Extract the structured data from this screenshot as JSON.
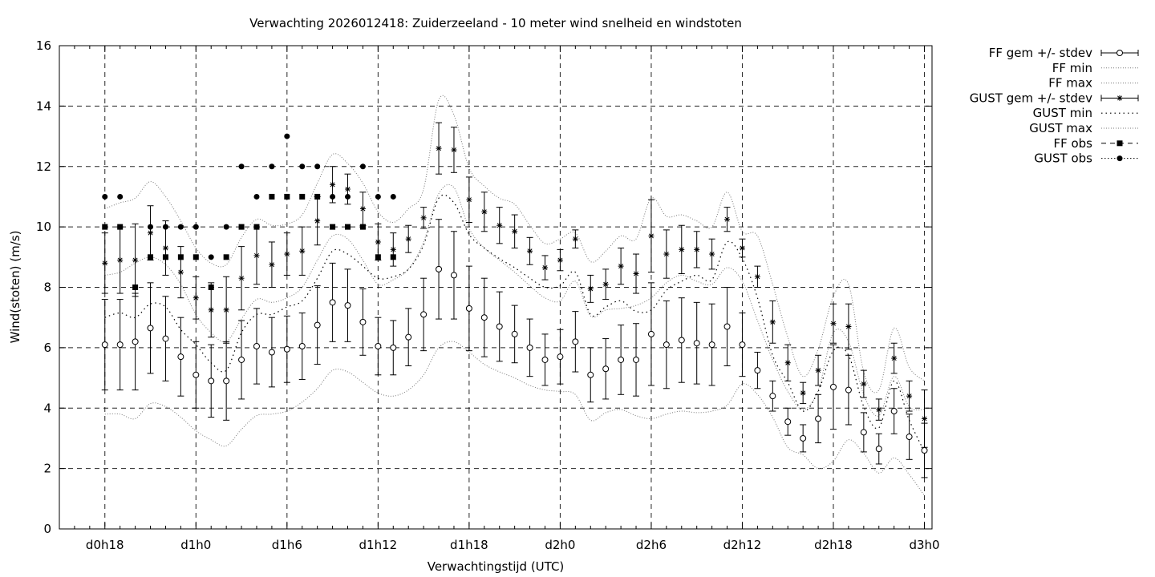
{
  "chart_data": {
    "type": "line",
    "title": "Verwachting 2026012418: Zuiderzeeland - 10 meter wind snelheid en windstoten",
    "xlabel": "Verwachtingstijd (UTC)",
    "ylabel": "Wind(stoten) (m/s)",
    "ylim": [
      0,
      16
    ],
    "yticks": [
      "0",
      "2",
      "4",
      "6",
      "8",
      "10",
      "12",
      "14",
      "16"
    ],
    "xlim_hours": [
      15,
      72.5
    ],
    "xticks": [
      {
        "h": 18,
        "label": "d0h18"
      },
      {
        "h": 24,
        "label": "d1h0"
      },
      {
        "h": 30,
        "label": "d1h6"
      },
      {
        "h": 36,
        "label": "d1h12"
      },
      {
        "h": 42,
        "label": "d1h18"
      },
      {
        "h": 48,
        "label": "d2h0"
      },
      {
        "h": 54,
        "label": "d2h6"
      },
      {
        "h": 60,
        "label": "d2h12"
      },
      {
        "h": 66,
        "label": "d2h18"
      },
      {
        "h": 72,
        "label": "d3h0"
      }
    ],
    "grid": true,
    "legend_position": "outside-right",
    "legend": [
      "FF gem +/- stdev",
      "FF min",
      "FF max",
      "GUST gem +/- stdev",
      "GUST min",
      "GUST max",
      "FF obs",
      "GUST obs"
    ],
    "ff_mean": [
      [
        18,
        6.1,
        1.5
      ],
      [
        19,
        6.1,
        1.5
      ],
      [
        20,
        6.2,
        1.6
      ],
      [
        21,
        6.65,
        1.5
      ],
      [
        22,
        6.3,
        1.4
      ],
      [
        23,
        5.7,
        1.3
      ],
      [
        24,
        5.1,
        1.1
      ],
      [
        25,
        4.9,
        1.2
      ],
      [
        26,
        4.9,
        1.3
      ],
      [
        27,
        5.6,
        1.3
      ],
      [
        28,
        6.05,
        1.25
      ],
      [
        29,
        5.85,
        1.15
      ],
      [
        30,
        5.95,
        1.1
      ],
      [
        31,
        6.05,
        1.1
      ],
      [
        32,
        6.75,
        1.3
      ],
      [
        33,
        7.5,
        1.3
      ],
      [
        34,
        7.4,
        1.2
      ],
      [
        35,
        6.85,
        1.1
      ],
      [
        36,
        6.05,
        0.95
      ],
      [
        37,
        6.0,
        0.9
      ],
      [
        38,
        6.35,
        0.95
      ],
      [
        39,
        7.1,
        1.2
      ],
      [
        40,
        8.6,
        1.65
      ],
      [
        41,
        8.4,
        1.45
      ],
      [
        42,
        7.3,
        1.4
      ],
      [
        43,
        7.0,
        1.3
      ],
      [
        44,
        6.7,
        1.15
      ],
      [
        45,
        6.45,
        0.95
      ],
      [
        46,
        6.0,
        0.95
      ],
      [
        47,
        5.6,
        0.85
      ],
      [
        48,
        5.7,
        0.9
      ],
      [
        49,
        6.2,
        1.0
      ],
      [
        50,
        5.1,
        0.9
      ],
      [
        51,
        5.3,
        1.0
      ],
      [
        52,
        5.6,
        1.15
      ],
      [
        53,
        5.6,
        1.2
      ],
      [
        54,
        6.45,
        1.7
      ],
      [
        55,
        6.1,
        1.45
      ],
      [
        56,
        6.25,
        1.4
      ],
      [
        57,
        6.15,
        1.35
      ],
      [
        58,
        6.1,
        1.35
      ],
      [
        59,
        6.7,
        1.3
      ],
      [
        60,
        6.1,
        1.05
      ],
      [
        61,
        5.25,
        0.6
      ],
      [
        62,
        4.4,
        0.5
      ],
      [
        63,
        3.55,
        0.45
      ],
      [
        64,
        3.0,
        0.45
      ],
      [
        65,
        3.65,
        0.8
      ],
      [
        66,
        4.7,
        1.4
      ],
      [
        67,
        4.6,
        1.15
      ],
      [
        68,
        3.2,
        0.65
      ],
      [
        69,
        2.65,
        0.5
      ],
      [
        70,
        3.9,
        0.75
      ],
      [
        71,
        3.05,
        0.75
      ],
      [
        72,
        2.6,
        0.9
      ]
    ],
    "gust_mean": [
      [
        18,
        8.8,
        1.0
      ],
      [
        19,
        8.9,
        1.1
      ],
      [
        20,
        8.9,
        1.2
      ],
      [
        21,
        9.8,
        0.9
      ],
      [
        22,
        9.3,
        0.9
      ],
      [
        23,
        8.5,
        0.85
      ],
      [
        24,
        7.65,
        0.7
      ],
      [
        25,
        7.25,
        0.9
      ],
      [
        26,
        7.25,
        1.1
      ],
      [
        27,
        8.3,
        1.05
      ],
      [
        28,
        9.05,
        0.95
      ],
      [
        29,
        8.75,
        0.75
      ],
      [
        30,
        9.1,
        0.7
      ],
      [
        31,
        9.2,
        0.8
      ],
      [
        32,
        10.2,
        0.8
      ],
      [
        33,
        11.4,
        0.6
      ],
      [
        34,
        11.25,
        0.5
      ],
      [
        35,
        10.6,
        0.55
      ],
      [
        36,
        9.5,
        0.6
      ],
      [
        37,
        9.25,
        0.55
      ],
      [
        38,
        9.6,
        0.45
      ],
      [
        39,
        10.3,
        0.35
      ],
      [
        40,
        12.6,
        0.85
      ],
      [
        41,
        12.55,
        0.75
      ],
      [
        42,
        10.9,
        0.75
      ],
      [
        43,
        10.5,
        0.65
      ],
      [
        44,
        10.05,
        0.6
      ],
      [
        45,
        9.85,
        0.55
      ],
      [
        46,
        9.2,
        0.45
      ],
      [
        47,
        8.65,
        0.4
      ],
      [
        48,
        8.9,
        0.35
      ],
      [
        49,
        9.6,
        0.3
      ],
      [
        50,
        7.95,
        0.45
      ],
      [
        51,
        8.1,
        0.5
      ],
      [
        52,
        8.7,
        0.6
      ],
      [
        53,
        8.45,
        0.65
      ],
      [
        54,
        9.7,
        1.2
      ],
      [
        55,
        9.1,
        0.8
      ],
      [
        56,
        9.25,
        0.8
      ],
      [
        57,
        9.25,
        0.6
      ],
      [
        58,
        9.1,
        0.5
      ],
      [
        59,
        10.25,
        0.4
      ],
      [
        60,
        9.3,
        0.3
      ],
      [
        61,
        8.35,
        0.35
      ],
      [
        62,
        6.85,
        0.7
      ],
      [
        63,
        5.5,
        0.6
      ],
      [
        64,
        4.5,
        0.35
      ],
      [
        65,
        5.25,
        0.5
      ],
      [
        66,
        6.8,
        0.65
      ],
      [
        67,
        6.7,
        0.75
      ],
      [
        68,
        4.8,
        0.45
      ],
      [
        69,
        3.95,
        0.35
      ],
      [
        70,
        5.65,
        0.5
      ],
      [
        71,
        4.4,
        0.5
      ],
      [
        72,
        3.65,
        0.95
      ]
    ],
    "ff_min": [
      [
        18,
        3.8
      ],
      [
        19,
        3.8
      ],
      [
        20,
        3.65
      ],
      [
        21,
        4.15
      ],
      [
        22,
        4.05
      ],
      [
        23,
        3.7
      ],
      [
        24,
        3.25
      ],
      [
        25,
        2.95
      ],
      [
        26,
        2.75
      ],
      [
        27,
        3.3
      ],
      [
        28,
        3.75
      ],
      [
        29,
        3.8
      ],
      [
        30,
        3.9
      ],
      [
        31,
        4.2
      ],
      [
        32,
        4.65
      ],
      [
        33,
        5.25
      ],
      [
        34,
        5.2
      ],
      [
        35,
        4.85
      ],
      [
        36,
        4.5
      ],
      [
        37,
        4.4
      ],
      [
        38,
        4.6
      ],
      [
        39,
        5.1
      ],
      [
        40,
        6.0
      ],
      [
        41,
        6.2
      ],
      [
        42,
        5.85
      ],
      [
        43,
        5.45
      ],
      [
        44,
        5.2
      ],
      [
        45,
        5.0
      ],
      [
        46,
        4.75
      ],
      [
        47,
        4.6
      ],
      [
        48,
        4.55
      ],
      [
        49,
        4.45
      ],
      [
        50,
        3.6
      ],
      [
        51,
        3.85
      ],
      [
        52,
        3.95
      ],
      [
        53,
        3.75
      ],
      [
        54,
        3.65
      ],
      [
        55,
        3.8
      ],
      [
        56,
        3.9
      ],
      [
        57,
        3.85
      ],
      [
        58,
        3.9
      ],
      [
        59,
        4.1
      ],
      [
        60,
        4.8
      ],
      [
        61,
        4.45
      ],
      [
        62,
        3.7
      ],
      [
        63,
        2.7
      ],
      [
        64,
        2.45
      ],
      [
        65,
        2.0
      ],
      [
        66,
        2.25
      ],
      [
        67,
        2.95
      ],
      [
        68,
        2.5
      ],
      [
        69,
        1.85
      ],
      [
        70,
        2.35
      ],
      [
        71,
        1.8
      ],
      [
        72,
        1.1
      ]
    ],
    "ff_max": [
      [
        18,
        8.4
      ],
      [
        19,
        8.5
      ],
      [
        20,
        8.8
      ],
      [
        21,
        9.0
      ],
      [
        22,
        8.75
      ],
      [
        23,
        8.1
      ],
      [
        24,
        7.1
      ],
      [
        25,
        6.5
      ],
      [
        26,
        6.2
      ],
      [
        27,
        6.95
      ],
      [
        28,
        7.6
      ],
      [
        29,
        7.5
      ],
      [
        30,
        7.65
      ],
      [
        31,
        8.0
      ],
      [
        32,
        8.9
      ],
      [
        33,
        9.7
      ],
      [
        34,
        9.6
      ],
      [
        35,
        8.9
      ],
      [
        36,
        8.1
      ],
      [
        37,
        8.25
      ],
      [
        38,
        8.6
      ],
      [
        39,
        9.5
      ],
      [
        40,
        11.1
      ],
      [
        41,
        11.3
      ],
      [
        42,
        9.95
      ],
      [
        43,
        9.3
      ],
      [
        44,
        8.9
      ],
      [
        45,
        8.5
      ],
      [
        46,
        8.05
      ],
      [
        47,
        7.65
      ],
      [
        48,
        7.55
      ],
      [
        49,
        8.2
      ],
      [
        50,
        7.05
      ],
      [
        51,
        7.25
      ],
      [
        52,
        7.3
      ],
      [
        53,
        7.4
      ],
      [
        54,
        7.65
      ],
      [
        55,
        8.15
      ],
      [
        56,
        8.4
      ],
      [
        57,
        8.2
      ],
      [
        58,
        8.1
      ],
      [
        59,
        8.65
      ],
      [
        60,
        8.2
      ],
      [
        61,
        6.9
      ],
      [
        62,
        5.6
      ],
      [
        63,
        4.55
      ],
      [
        64,
        3.95
      ],
      [
        65,
        4.6
      ],
      [
        66,
        6.5
      ],
      [
        67,
        6.2
      ],
      [
        68,
        4.45
      ],
      [
        69,
        3.75
      ],
      [
        70,
        5.05
      ],
      [
        71,
        4.05
      ],
      [
        72,
        3.95
      ]
    ],
    "gust_min": [
      [
        18,
        7.0
      ],
      [
        19,
        7.15
      ],
      [
        20,
        7.0
      ],
      [
        21,
        7.45
      ],
      [
        22,
        7.35
      ],
      [
        23,
        6.6
      ],
      [
        24,
        6.1
      ],
      [
        25,
        5.5
      ],
      [
        26,
        5.25
      ],
      [
        27,
        6.5
      ],
      [
        28,
        7.1
      ],
      [
        29,
        7.1
      ],
      [
        30,
        7.35
      ],
      [
        31,
        7.55
      ],
      [
        32,
        8.3
      ],
      [
        33,
        9.2
      ],
      [
        34,
        9.1
      ],
      [
        35,
        8.7
      ],
      [
        36,
        8.3
      ],
      [
        37,
        8.35
      ],
      [
        38,
        8.6
      ],
      [
        39,
        9.4
      ],
      [
        40,
        10.95
      ],
      [
        41,
        10.8
      ],
      [
        42,
        9.75
      ],
      [
        43,
        9.3
      ],
      [
        44,
        8.95
      ],
      [
        45,
        8.65
      ],
      [
        46,
        8.3
      ],
      [
        47,
        8.0
      ],
      [
        48,
        8.05
      ],
      [
        49,
        8.5
      ],
      [
        50,
        7.1
      ],
      [
        51,
        7.35
      ],
      [
        52,
        7.55
      ],
      [
        53,
        7.2
      ],
      [
        54,
        7.25
      ],
      [
        55,
        7.9
      ],
      [
        56,
        8.2
      ],
      [
        57,
        8.4
      ],
      [
        58,
        8.25
      ],
      [
        59,
        9.5
      ],
      [
        60,
        8.95
      ],
      [
        61,
        7.65
      ],
      [
        62,
        5.75
      ],
      [
        63,
        4.85
      ],
      [
        64,
        3.9
      ],
      [
        65,
        4.55
      ],
      [
        66,
        5.9
      ],
      [
        67,
        5.75
      ],
      [
        68,
        4.05
      ],
      [
        69,
        3.35
      ],
      [
        70,
        4.9
      ],
      [
        71,
        3.6
      ],
      [
        72,
        2.55
      ]
    ],
    "gust_max": [
      [
        18,
        10.6
      ],
      [
        19,
        10.8
      ],
      [
        20,
        10.95
      ],
      [
        21,
        11.5
      ],
      [
        22,
        11.0
      ],
      [
        23,
        10.2
      ],
      [
        24,
        9.3
      ],
      [
        25,
        8.8
      ],
      [
        26,
        8.75
      ],
      [
        27,
        9.65
      ],
      [
        28,
        10.25
      ],
      [
        29,
        10.05
      ],
      [
        30,
        10.1
      ],
      [
        31,
        10.4
      ],
      [
        32,
        11.45
      ],
      [
        33,
        12.4
      ],
      [
        34,
        12.1
      ],
      [
        35,
        11.45
      ],
      [
        36,
        10.5
      ],
      [
        37,
        10.15
      ],
      [
        38,
        10.6
      ],
      [
        39,
        11.25
      ],
      [
        40,
        14.2
      ],
      [
        41,
        13.7
      ],
      [
        42,
        11.95
      ],
      [
        43,
        11.35
      ],
      [
        44,
        10.95
      ],
      [
        45,
        10.75
      ],
      [
        46,
        10.05
      ],
      [
        47,
        9.45
      ],
      [
        48,
        9.6
      ],
      [
        49,
        9.8
      ],
      [
        50,
        8.85
      ],
      [
        51,
        9.2
      ],
      [
        52,
        9.7
      ],
      [
        53,
        9.6
      ],
      [
        54,
        10.95
      ],
      [
        55,
        10.35
      ],
      [
        56,
        10.4
      ],
      [
        57,
        10.2
      ],
      [
        58,
        10.0
      ],
      [
        59,
        11.15
      ],
      [
        60,
        9.85
      ],
      [
        61,
        9.7
      ],
      [
        62,
        8.1
      ],
      [
        63,
        6.35
      ],
      [
        64,
        5.05
      ],
      [
        65,
        5.95
      ],
      [
        66,
        7.7
      ],
      [
        67,
        8.1
      ],
      [
        68,
        5.2
      ],
      [
        69,
        4.6
      ],
      [
        70,
        6.65
      ],
      [
        71,
        5.35
      ],
      [
        72,
        4.9
      ]
    ],
    "ff_obs": [
      [
        18,
        10
      ],
      [
        19,
        10
      ],
      [
        20,
        8
      ],
      [
        21,
        9
      ],
      [
        22,
        9
      ],
      [
        23,
        9
      ],
      [
        24,
        9
      ],
      [
        25,
        8
      ],
      [
        26,
        9
      ],
      [
        27,
        10
      ],
      [
        28,
        10
      ],
      [
        29,
        11
      ],
      [
        30,
        11
      ],
      [
        31,
        11
      ],
      [
        32,
        11
      ],
      [
        33,
        10
      ],
      [
        34,
        10
      ],
      [
        35,
        10
      ],
      [
        36,
        9
      ],
      [
        37,
        9
      ]
    ],
    "gust_obs": [
      [
        18,
        11
      ],
      [
        19,
        11
      ],
      [
        21,
        10
      ],
      [
        22,
        10
      ],
      [
        23,
        10
      ],
      [
        24,
        10
      ],
      [
        25,
        9
      ],
      [
        26,
        10
      ],
      [
        27,
        12
      ],
      [
        28,
        11
      ],
      [
        29,
        12
      ],
      [
        30,
        13
      ],
      [
        31,
        12
      ],
      [
        32,
        12
      ],
      [
        33,
        11
      ],
      [
        34,
        11
      ],
      [
        35,
        12
      ],
      [
        36,
        11
      ],
      [
        37,
        11
      ]
    ]
  }
}
